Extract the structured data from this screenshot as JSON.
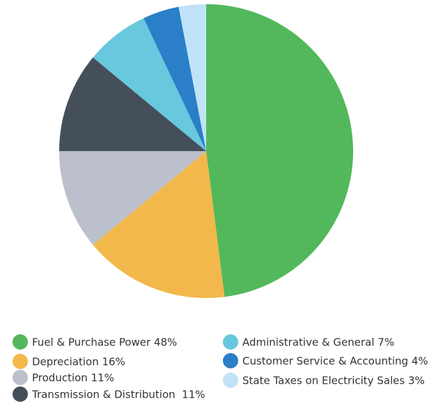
{
  "chart_data": {
    "type": "pie",
    "categories": [
      "Fuel & Purchase Power 48%",
      "Depreciation 16%",
      "Production 11%",
      "Transmission & Distribution  11%",
      "Administrative & General 7%",
      "Customer Service & Accounting 4%",
      "State Taxes on Electricity Sales 3%"
    ],
    "values": [
      48,
      16,
      11,
      11,
      7,
      4,
      3
    ],
    "colors": [
      "#52b85b",
      "#f2b84b",
      "#bcc0cc",
      "#444f5a",
      "#68c8de",
      "#2a7fc8",
      "#c0e3f7"
    ]
  }
}
